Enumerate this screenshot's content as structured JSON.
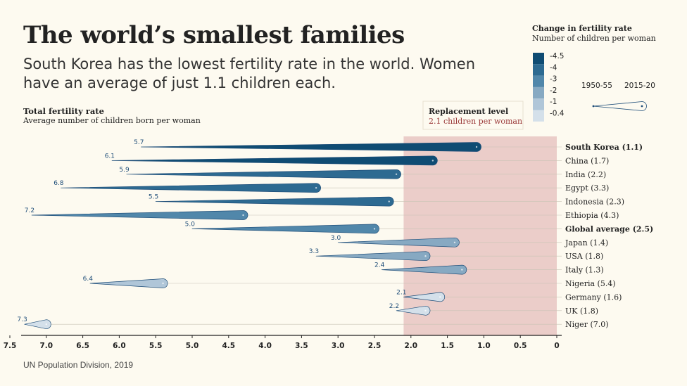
{
  "header": {
    "title": "The world’s smallest families",
    "subtitle": "South Korea has the lowest fertility rate in the world. Women have an average of just 1.1 children each."
  },
  "axis": {
    "title": "Total fertility rate",
    "subtitle": "Average number of children born per woman"
  },
  "source": "UN Population Division, 2019",
  "replacement": {
    "title": "Replacement level",
    "subtitle": "2.1 children per woman",
    "value": 2.1,
    "color": "#e8c4c2"
  },
  "legend": {
    "title": "Change in fertility rate",
    "subtitle": "Number of children per woman",
    "steps": [
      {
        "label": "-4.5",
        "color": "#0f4c73"
      },
      {
        "label": "-4",
        "color": "#2d6a91"
      },
      {
        "label": "-3",
        "color": "#5187aa"
      },
      {
        "label": "-2",
        "color": "#87a9c2"
      },
      {
        "label": "-1",
        "color": "#b0c6d8"
      },
      {
        "label": "-0.4",
        "color": "#d4e0ea"
      }
    ],
    "period_start": "1950-55",
    "period_end": "2015-20"
  },
  "chart_data": {
    "type": "bar",
    "xlim": [
      7.5,
      0
    ],
    "xticks": [
      "7.5",
      "7.0",
      "6.5",
      "6.0",
      "5.5",
      "5.0",
      "4.5",
      "4.0",
      "3.5",
      "3.0",
      "2.5",
      "2.0",
      "1.5",
      "1.0",
      "0.5",
      "0"
    ],
    "rows": [
      {
        "label": "South Korea (1.1)",
        "bold": true,
        "start": 5.7,
        "end": 1.1,
        "start_label": "5.7",
        "color": "#0f4c73"
      },
      {
        "label": "China (1.7)",
        "bold": false,
        "start": 6.1,
        "end": 1.7,
        "start_label": "6.1",
        "color": "#0f4c73"
      },
      {
        "label": "India (2.2)",
        "bold": false,
        "start": 5.9,
        "end": 2.2,
        "start_label": "5.9",
        "color": "#2d6a91"
      },
      {
        "label": "Egypt (3.3)",
        "bold": false,
        "start": 6.8,
        "end": 3.3,
        "start_label": "6.8",
        "color": "#2d6a91"
      },
      {
        "label": "Indonesia (2.3)",
        "bold": false,
        "start": 5.5,
        "end": 2.3,
        "start_label": "5.5",
        "color": "#2d6a91"
      },
      {
        "label": "Ethiopia (4.3)",
        "bold": false,
        "start": 7.2,
        "end": 4.3,
        "start_label": "7.2",
        "color": "#5187aa"
      },
      {
        "label": "Global average (2.5)",
        "bold": true,
        "start": 5.0,
        "end": 2.5,
        "start_label": "5.0",
        "color": "#5187aa"
      },
      {
        "label": "Japan (1.4)",
        "bold": false,
        "start": 3.0,
        "end": 1.4,
        "start_label": "3.0",
        "color": "#87a9c2"
      },
      {
        "label": "USA (1.8)",
        "bold": false,
        "start": 3.3,
        "end": 1.8,
        "start_label": "3.3",
        "color": "#87a9c2"
      },
      {
        "label": "Italy (1.3)",
        "bold": false,
        "start": 2.4,
        "end": 1.3,
        "start_label": "2.4",
        "color": "#87a9c2"
      },
      {
        "label": "Nigeria (5.4)",
        "bold": false,
        "start": 6.4,
        "end": 5.4,
        "start_label": "6.4",
        "color": "#b0c6d8"
      },
      {
        "label": "Germany (1.6)",
        "bold": false,
        "start": 2.1,
        "end": 1.6,
        "start_label": "2.1",
        "color": "#d4e0ea"
      },
      {
        "label": "UK (1.8)",
        "bold": false,
        "start": 2.2,
        "end": 1.8,
        "start_label": "2.2",
        "color": "#d4e0ea"
      },
      {
        "label": "Niger (7.0)",
        "bold": false,
        "start": 7.3,
        "end": 7.0,
        "start_label": "7.3",
        "color": "#d4e0ea"
      }
    ]
  }
}
